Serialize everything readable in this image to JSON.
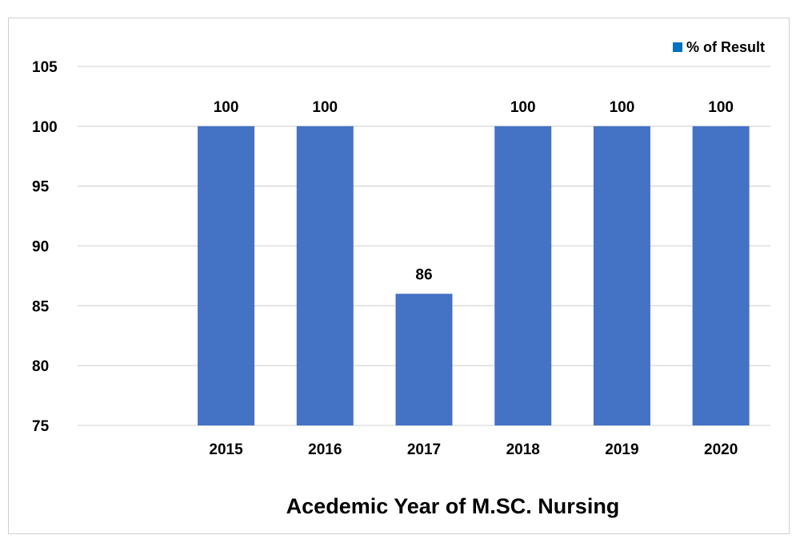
{
  "chart_data": {
    "type": "bar",
    "categories": [
      "2015",
      "2016",
      "2017",
      "2018",
      "2019",
      "2020"
    ],
    "series": [
      {
        "name": "% of Result",
        "values": [
          100,
          100,
          86,
          100,
          100,
          100
        ],
        "data_labels": [
          "100",
          "100",
          "86",
          "100",
          "100",
          "100"
        ],
        "color": "#4472C4"
      }
    ],
    "title": "",
    "xlabel": "Acedemic Year of M.SC. Nursing",
    "ylabel": "",
    "ylim": [
      75,
      105
    ],
    "yticks": [
      "105",
      "100",
      "95",
      "90",
      "85",
      "80",
      "75"
    ],
    "grid": true,
    "legend_position": "top-right",
    "legend_marker_color": "#0070C0",
    "gridline_color": "#d9d9d9"
  }
}
